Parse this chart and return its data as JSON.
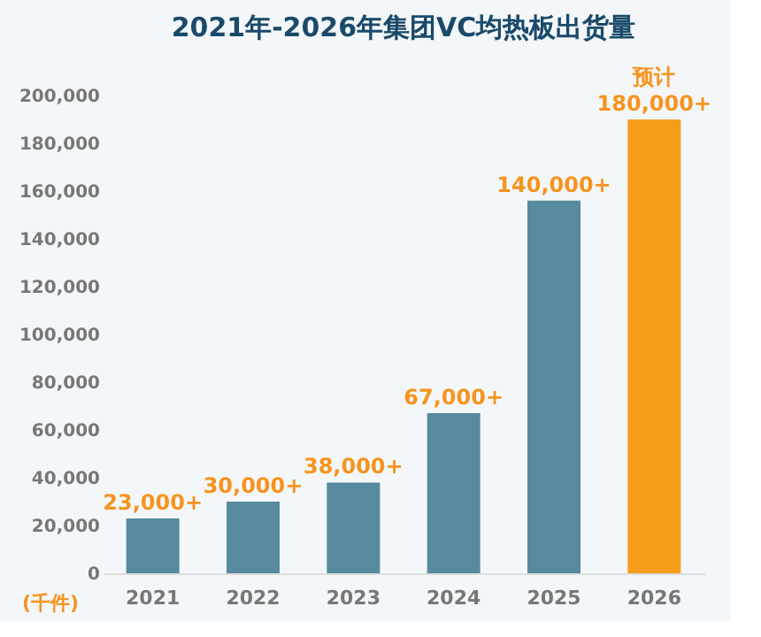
{
  "chart_data": {
    "type": "bar",
    "title": "2021年-2026年集团VC均热板出货量",
    "ylabel": "(千件)",
    "categories": [
      "2021",
      "2022",
      "2023",
      "2024",
      "2025",
      "2026"
    ],
    "values": [
      23000,
      30000,
      38000,
      67000,
      156000,
      190000
    ],
    "value_labels": [
      "23,000+",
      "30,000+",
      "38,000+",
      "67,000+",
      "140,000+",
      "180,000+"
    ],
    "colors": [
      "#578a9f",
      "#578a9f",
      "#578a9f",
      "#578a9f",
      "#578a9f",
      "#f59c1a"
    ],
    "annotations": [
      {
        "text": "预计",
        "x": "2026",
        "y": 190000
      }
    ],
    "ylim": [
      0,
      200000
    ],
    "yticks": [
      0,
      {
        "value": 20000,
        "label": "20,000"
      },
      {
        "value": 40000,
        "label": "40,000"
      },
      {
        "value": 60000,
        "label": "60,000"
      },
      {
        "value": 80000,
        "label": "80,000"
      },
      {
        "value": 100000,
        "label": "100,000"
      },
      {
        "value": 120000,
        "label": "120,000"
      },
      {
        "value": 140000,
        "label": "140,000"
      },
      {
        "value": 160000,
        "label": "160,000"
      },
      {
        "value": 180000,
        "label": "180,000"
      },
      {
        "value": 200000,
        "label": "200,000"
      }
    ],
    "grid": false
  }
}
